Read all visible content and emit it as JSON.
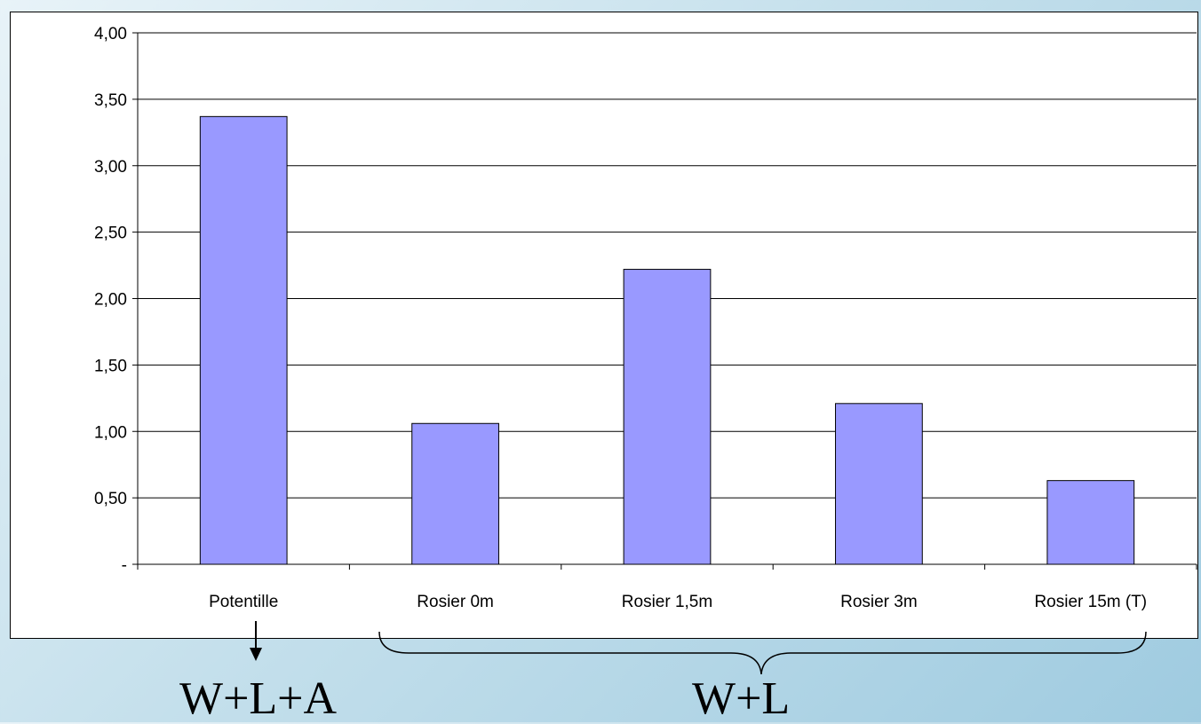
{
  "chart_data": {
    "type": "bar",
    "categories": [
      "Potentille",
      "Rosier 0m",
      "Rosier 1,5m",
      "Rosier 3m",
      "Rosier 15m (T)"
    ],
    "values": [
      3.37,
      1.06,
      2.22,
      1.21,
      0.63
    ],
    "ylim": [
      0,
      4
    ],
    "yticks": [
      0,
      0.5,
      1,
      1.5,
      2,
      2.5,
      3,
      3.5,
      4
    ],
    "ytick_labels": [
      "-",
      "0,50",
      "1,00",
      "1,50",
      "2,00",
      "2,50",
      "3,00",
      "3,50",
      "4,00"
    ],
    "grid": true,
    "bar_color": "#9999ff",
    "title": "",
    "xlabel": "",
    "ylabel": ""
  },
  "annotations": {
    "left_group_label": "W+L+A",
    "right_group_label": "W+L"
  }
}
